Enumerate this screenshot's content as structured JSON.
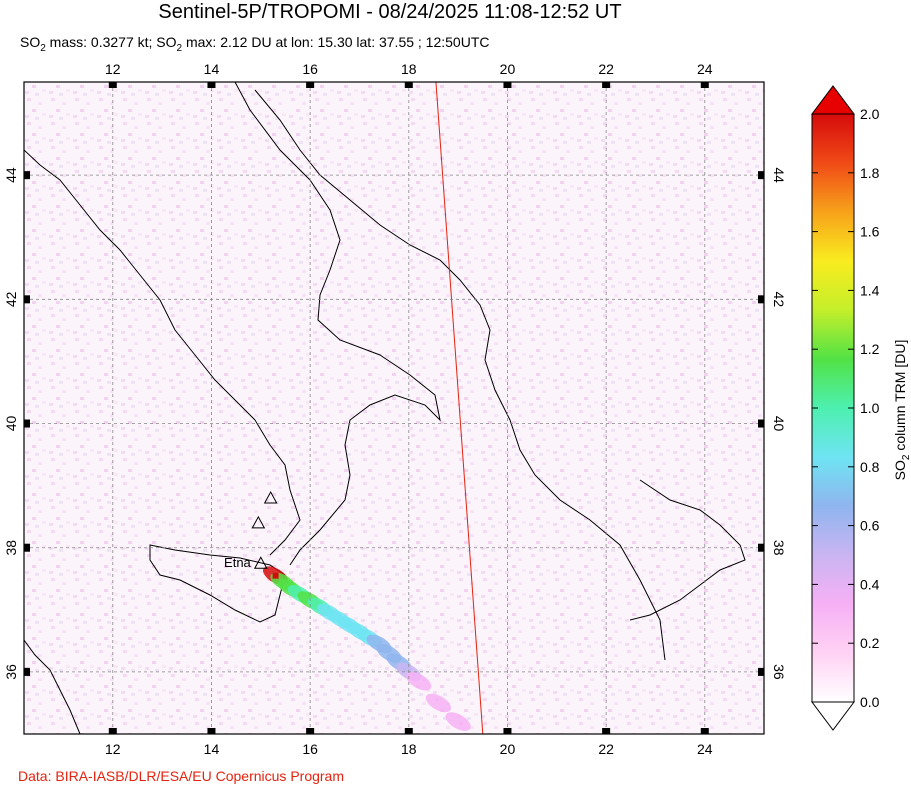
{
  "chart_data": {
    "type": "heatmap",
    "title": "Sentinel-5P/TROPOMI - 08/24/2025 11:08-12:52 UT",
    "subtitle": {
      "mass_prefix": "SO",
      "mass_sub": "2",
      "mass_text": " mass: 0.3277 kt; ",
      "max_prefix": "SO",
      "max_sub": "2",
      "max_text": " max: 2.12 DU at lon: 15.30 lat: 37.55 ; 12:50UTC"
    },
    "credit": "Data: BIRA-IASB/DLR/ESA/EU Copernicus Program",
    "xlim": [
      10.2,
      25.2
    ],
    "ylim": [
      35.0,
      45.5
    ],
    "x_ticks": [
      12,
      14,
      16,
      18,
      20,
      22,
      24
    ],
    "y_ticks": [
      36,
      38,
      40,
      42,
      44
    ],
    "x_tick_labels": [
      "12",
      "14",
      "16",
      "18",
      "20",
      "22",
      "24"
    ],
    "y_tick_labels": [
      "36",
      "38",
      "40",
      "42",
      "44"
    ],
    "grid": true,
    "colorbar": {
      "label_prefix": "SO",
      "label_sub": "2",
      "label_text": " column TRM [DU]",
      "min": 0.0,
      "max": 2.0,
      "ticks": [
        0.0,
        0.2,
        0.4,
        0.6,
        0.8,
        1.0,
        1.2,
        1.4,
        1.6,
        1.8,
        2.0
      ],
      "tick_labels": [
        "0.0",
        "0.2",
        "0.4",
        "0.6",
        "0.8",
        "1.0",
        "1.2",
        "1.4",
        "1.6",
        "1.8",
        "2.0"
      ],
      "colors": [
        "#ffffff",
        "#ffd2f4",
        "#f6b0f5",
        "#c9b5f2",
        "#8fb5ef",
        "#6fe4f2",
        "#4df0b0",
        "#52e245",
        "#c4ef2a",
        "#f9ec1f",
        "#f7a21a",
        "#f04a17",
        "#d50b0b"
      ]
    },
    "volcanoes": [
      {
        "name": "Etna",
        "lon": 15.0,
        "lat": 37.75
      },
      {
        "name": "",
        "lon": 15.2,
        "lat": 38.8
      },
      {
        "name": "",
        "lon": 14.95,
        "lat": 38.4
      }
    ],
    "max_point": {
      "lon": 15.3,
      "lat": 37.55,
      "value": 2.12
    },
    "plume": [
      {
        "lon": 15.3,
        "lat": 37.55,
        "value": 2.0
      },
      {
        "lon": 15.45,
        "lat": 37.45,
        "value": 1.1
      },
      {
        "lon": 15.6,
        "lat": 37.35,
        "value": 1.2
      },
      {
        "lon": 15.8,
        "lat": 37.25,
        "value": 1.0
      },
      {
        "lon": 16.0,
        "lat": 37.15,
        "value": 1.1
      },
      {
        "lon": 16.2,
        "lat": 37.05,
        "value": 1.0
      },
      {
        "lon": 16.4,
        "lat": 36.95,
        "value": 0.9
      },
      {
        "lon": 16.6,
        "lat": 36.85,
        "value": 0.9
      },
      {
        "lon": 16.8,
        "lat": 36.75,
        "value": 0.8
      },
      {
        "lon": 17.0,
        "lat": 36.65,
        "value": 0.8
      },
      {
        "lon": 17.2,
        "lat": 36.55,
        "value": 0.8
      },
      {
        "lon": 17.4,
        "lat": 36.45,
        "value": 0.7
      },
      {
        "lon": 17.6,
        "lat": 36.3,
        "value": 0.7
      },
      {
        "lon": 17.8,
        "lat": 36.15,
        "value": 0.6
      },
      {
        "lon": 18.0,
        "lat": 36.0,
        "value": 0.5
      },
      {
        "lon": 18.2,
        "lat": 35.85,
        "value": 0.4
      },
      {
        "lon": 18.6,
        "lat": 35.5,
        "value": 0.3
      },
      {
        "lon": 19.0,
        "lat": 35.2,
        "value": 0.4
      }
    ],
    "swath_edge": [
      [
        18.55,
        45.5
      ],
      [
        19.5,
        35.0
      ]
    ]
  }
}
